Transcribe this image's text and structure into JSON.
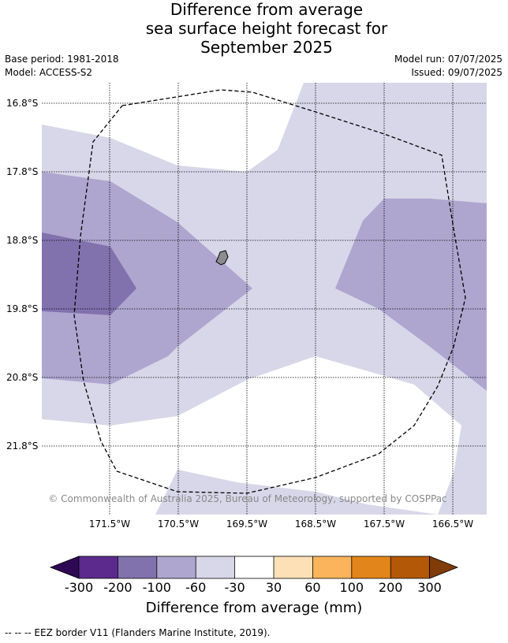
{
  "title": {
    "line1": "Difference from average",
    "line2": "sea surface height forecast for",
    "line3": "September 2025"
  },
  "meta": {
    "base_period": "Base period: 1981-2018",
    "model": "Model: ACCESS-S2",
    "model_run": "Model run: 07/07/2025",
    "issued": "Issued: 09/07/2025"
  },
  "axes": {
    "lat_labels": [
      "16.8°S",
      "17.8°S",
      "18.8°S",
      "19.8°S",
      "20.8°S",
      "21.8°S"
    ],
    "lon_labels": [
      "171.5°W",
      "170.5°W",
      "169.5°W",
      "168.5°W",
      "167.5°W",
      "166.5°W"
    ]
  },
  "copyright": "© Commonwealth of Australia 2025, Bureau of Meteorology, supported by COSPPac",
  "colorbar": {
    "labels": [
      "-300",
      "-200",
      "-100",
      "-60",
      "-30",
      "30",
      "60",
      "100",
      "200",
      "300"
    ],
    "colors": [
      "#2e0854",
      "#5b2a8c",
      "#8172ae",
      "#aea6cf",
      "#d8d7e9",
      "#ffffff",
      "#fde0b6",
      "#fbb45c",
      "#e2851a",
      "#b35806",
      "#7f3b08"
    ],
    "title": "Difference from average (mm)"
  },
  "footnote": "--  --  -- EEZ border V11 (Flanders Marine Institute, 2019)."
}
